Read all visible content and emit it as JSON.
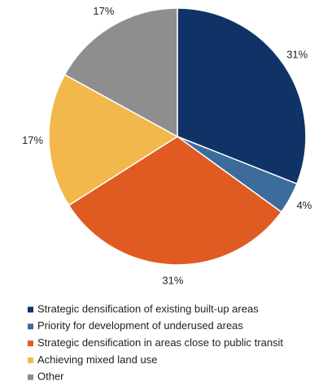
{
  "chart_data": {
    "type": "pie",
    "categories": [
      "Strategic densification of existing built-up areas",
      "Priority for development of underused areas",
      "Strategic densification in areas close to public transit",
      "Achieving mixed land use",
      "Other"
    ],
    "values": [
      31,
      4,
      31,
      17,
      17
    ],
    "value_labels": [
      "31%",
      "4%",
      "31%",
      "17%",
      "17%"
    ],
    "colors": [
      "#0f3366",
      "#3b6c9c",
      "#e05b22",
      "#f2b84b",
      "#8e8e8e"
    ],
    "legend": "bottom"
  }
}
